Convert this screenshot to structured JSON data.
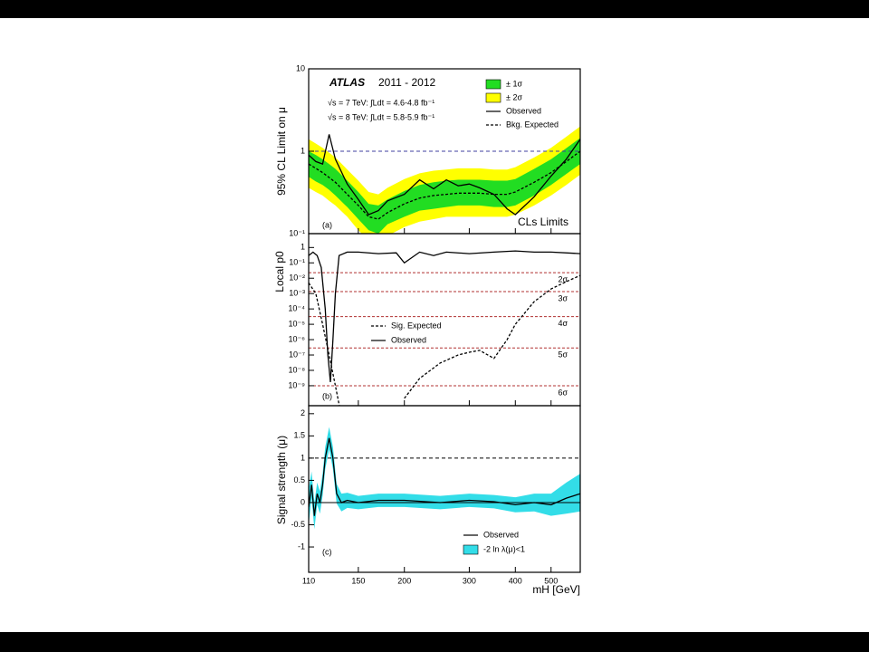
{
  "chart_data": [
    {
      "type": "line",
      "log_x": true,
      "log_y": true,
      "ylabel": "95% CL Limit on μ",
      "panel_label": "(a)",
      "note": "CLs Limits",
      "experiment": "ATLAS",
      "period": "2011 - 2012",
      "annotations": [
        "√s = 7 TeV: ∫Ldt = 4.6-4.8 fb⁻¹",
        "√s = 8 TeV: ∫Ldt = 5.8-5.9 fb⁻¹"
      ],
      "xlim": [
        110,
        600
      ],
      "ylim": [
        0.1,
        10
      ],
      "yticks": [
        {
          "value": 0.1,
          "label": "10⁻¹"
        },
        1,
        10
      ],
      "legend_position": "top-right",
      "reference_lines": [
        {
          "value": 1,
          "color": "#4040a0",
          "style": "dashed"
        }
      ],
      "series": [
        {
          "name": "± 1σ",
          "kind": "band",
          "color": "#22dd22",
          "x": [
            110,
            115,
            120,
            125,
            130,
            140,
            150,
            160,
            170,
            180,
            200,
            220,
            240,
            260,
            280,
            300,
            320,
            350,
            380,
            400,
            450,
            500,
            550,
            600
          ],
          "low": [
            0.49,
            0.43,
            0.39,
            0.34,
            0.29,
            0.21,
            0.15,
            0.11,
            0.1,
            0.13,
            0.16,
            0.19,
            0.2,
            0.21,
            0.22,
            0.22,
            0.22,
            0.21,
            0.21,
            0.22,
            0.29,
            0.39,
            0.53,
            0.7
          ],
          "high": [
            1.0,
            0.9,
            0.8,
            0.7,
            0.61,
            0.44,
            0.32,
            0.23,
            0.22,
            0.26,
            0.33,
            0.39,
            0.42,
            0.44,
            0.45,
            0.45,
            0.45,
            0.44,
            0.44,
            0.46,
            0.61,
            0.8,
            1.09,
            1.45
          ]
        },
        {
          "name": "± 2σ",
          "kind": "band",
          "color": "#ffff00",
          "x": [
            110,
            115,
            120,
            125,
            130,
            140,
            150,
            160,
            170,
            180,
            200,
            220,
            240,
            260,
            280,
            300,
            320,
            350,
            380,
            400,
            450,
            500,
            550,
            600
          ],
          "low": [
            0.36,
            0.32,
            0.29,
            0.25,
            0.22,
            0.16,
            0.11,
            0.083,
            0.078,
            0.094,
            0.12,
            0.14,
            0.15,
            0.16,
            0.16,
            0.16,
            0.16,
            0.16,
            0.16,
            0.17,
            0.22,
            0.29,
            0.39,
            0.52
          ],
          "high": [
            1.4,
            1.24,
            1.1,
            0.96,
            0.84,
            0.6,
            0.44,
            0.32,
            0.3,
            0.36,
            0.46,
            0.54,
            0.58,
            0.6,
            0.62,
            0.62,
            0.62,
            0.6,
            0.6,
            0.64,
            0.84,
            1.1,
            1.5,
            2.0
          ]
        },
        {
          "name": "Observed",
          "kind": "line",
          "color": "#000000",
          "style": "solid",
          "x": [
            110,
            115,
            120,
            125,
            130,
            140,
            150,
            160,
            170,
            180,
            200,
            220,
            240,
            260,
            280,
            300,
            320,
            350,
            380,
            400,
            450,
            500,
            550,
            600
          ],
          "values": [
            0.9,
            0.75,
            0.7,
            1.6,
            0.8,
            0.4,
            0.26,
            0.17,
            0.19,
            0.25,
            0.3,
            0.45,
            0.35,
            0.45,
            0.38,
            0.4,
            0.36,
            0.3,
            0.2,
            0.17,
            0.28,
            0.5,
            0.8,
            1.4
          ]
        },
        {
          "name": "Bkg. Expected",
          "kind": "line",
          "color": "#000000",
          "style": "dashed",
          "x": [
            110,
            115,
            120,
            125,
            130,
            140,
            150,
            160,
            170,
            180,
            200,
            220,
            240,
            260,
            280,
            300,
            320,
            350,
            380,
            400,
            450,
            500,
            550,
            600
          ],
          "values": [
            0.7,
            0.62,
            0.55,
            0.48,
            0.42,
            0.3,
            0.22,
            0.16,
            0.15,
            0.18,
            0.23,
            0.27,
            0.29,
            0.3,
            0.31,
            0.31,
            0.31,
            0.3,
            0.3,
            0.32,
            0.42,
            0.55,
            0.75,
            1.0
          ]
        }
      ]
    },
    {
      "type": "line",
      "log_x": true,
      "log_y": true,
      "ylabel": "Local p0",
      "panel_label": "(b)",
      "xlim": [
        110,
        600
      ],
      "ylim": [
        5e-11,
        8
      ],
      "yticks": [
        1,
        {
          "value": 0.1,
          "label": "10⁻¹"
        },
        {
          "value": 0.01,
          "label": "10⁻²"
        },
        {
          "value": 0.001,
          "label": "10⁻³"
        },
        {
          "value": 0.0001,
          "label": "10⁻⁴"
        },
        {
          "value": 1e-05,
          "label": "10⁻⁵"
        },
        {
          "value": 1e-06,
          "label": "10⁻⁶"
        },
        {
          "value": 1e-07,
          "label": "10⁻⁷"
        },
        {
          "value": 1e-08,
          "label": "10⁻⁸"
        },
        {
          "value": 1e-09,
          "label": "10⁻⁹"
        }
      ],
      "legend_position": "center",
      "sigma_lines": [
        {
          "value": 0.0228,
          "label": "2σ"
        },
        {
          "value": 0.00135,
          "label": "3σ"
        },
        {
          "value": 3.17e-05,
          "label": "4σ"
        },
        {
          "value": 2.87e-07,
          "label": "5σ"
        },
        {
          "value": 9.87e-10,
          "label": "6σ"
        }
      ],
      "sigma_color": "#b03030",
      "series": [
        {
          "name": "Sig. Expected",
          "kind": "line",
          "color": "#000000",
          "style": "dashed",
          "x": [
            110,
            115,
            120,
            125,
            130,
            135,
            170,
            200,
            220,
            250,
            280,
            300,
            320,
            350,
            380,
            400,
            450,
            500,
            550,
            600
          ],
          "values": [
            0.005,
            0.001,
            1e-05,
            1e-07,
            1e-09,
            1e-11,
            null,
            1.5e-10,
            3e-09,
            3e-08,
            1e-07,
            1.5e-07,
            2e-07,
            6e-08,
            1e-06,
            1e-05,
            0.0003,
            0.002,
            0.006,
            0.015
          ]
        },
        {
          "name": "Observed",
          "kind": "line",
          "color": "#000000",
          "style": "solid",
          "x": [
            110,
            113,
            116,
            119,
            122,
            124,
            126,
            128,
            130,
            133,
            140,
            150,
            170,
            190,
            200,
            220,
            240,
            260,
            300,
            350,
            400,
            450,
            500,
            600
          ],
          "values": [
            0.3,
            0.5,
            0.3,
            0.05,
            0.0001,
            1e-07,
            1.7e-09,
            1e-06,
            0.001,
            0.3,
            0.5,
            0.5,
            0.4,
            0.45,
            0.1,
            0.5,
            0.3,
            0.5,
            0.4,
            0.5,
            0.6,
            0.5,
            0.5,
            0.4
          ]
        }
      ]
    },
    {
      "type": "line",
      "log_x": true,
      "log_y": false,
      "ylabel": "Signal strength (μ)",
      "panel_label": "(c)",
      "xlabel": "mH [GeV]",
      "xlim": [
        110,
        600
      ],
      "ylim": [
        -1.57,
        2.18
      ],
      "xticks": [
        110,
        150,
        200,
        300,
        400,
        500
      ],
      "yticks": [
        -1,
        -0.5,
        0,
        0.5,
        1,
        1.5,
        2
      ],
      "legend_position": "bottom-right",
      "reference_lines": [
        {
          "value": 0,
          "color": "#000000",
          "style": "solid"
        },
        {
          "value": 1,
          "color": "#000000",
          "style": "dashed"
        }
      ],
      "series": [
        {
          "name": "Observed",
          "kind": "line",
          "color": "#000000",
          "style": "solid",
          "x": [
            110,
            112,
            114,
            116,
            118,
            120,
            122,
            125,
            128,
            131,
            135,
            140,
            150,
            170,
            200,
            250,
            300,
            350,
            400,
            450,
            500,
            550,
            600
          ],
          "values": [
            -0.1,
            0.4,
            -0.3,
            0.2,
            0,
            0.4,
            1.0,
            1.45,
            1.0,
            0.2,
            0,
            0.05,
            0,
            0.05,
            0.05,
            0,
            0.05,
            0.02,
            -0.05,
            0,
            -0.05,
            0.1,
            0.2
          ]
        },
        {
          "name": "-2 ln λ(μ)<1",
          "kind": "band",
          "color": "#33dde8",
          "x": [
            110,
            112,
            114,
            116,
            118,
            120,
            122,
            125,
            128,
            131,
            135,
            140,
            150,
            170,
            200,
            250,
            300,
            350,
            400,
            450,
            500,
            550,
            600
          ],
          "low": [
            -0.5,
            0.1,
            -0.6,
            -0.05,
            -0.25,
            0.15,
            0.75,
            1.2,
            0.75,
            -0.02,
            -0.2,
            -0.12,
            -0.15,
            -0.1,
            -0.1,
            -0.15,
            -0.1,
            -0.13,
            -0.22,
            -0.2,
            -0.3,
            -0.25,
            -0.2
          ],
          "high": [
            0.3,
            0.7,
            0.0,
            0.45,
            0.25,
            0.65,
            1.25,
            1.7,
            1.25,
            0.42,
            0.2,
            0.22,
            0.15,
            0.2,
            0.2,
            0.15,
            0.2,
            0.17,
            0.12,
            0.2,
            0.2,
            0.45,
            0.65
          ]
        }
      ]
    }
  ]
}
